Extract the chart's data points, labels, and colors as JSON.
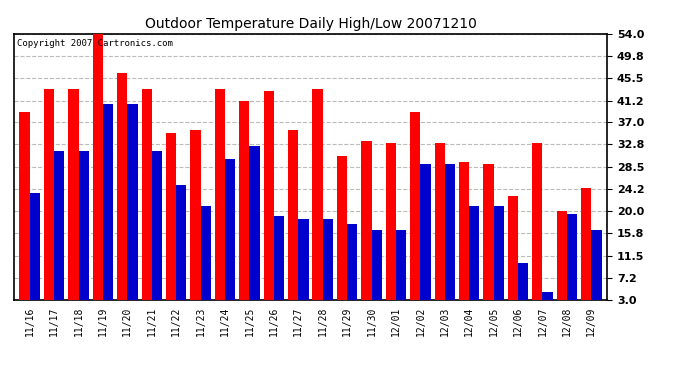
{
  "title": "Outdoor Temperature Daily High/Low 20071210",
  "copyright": "Copyright 2007 Cartronics.com",
  "dates": [
    "11/16",
    "11/17",
    "11/18",
    "11/19",
    "11/20",
    "11/21",
    "11/22",
    "11/23",
    "11/24",
    "11/25",
    "11/26",
    "11/27",
    "11/28",
    "11/29",
    "11/30",
    "12/01",
    "12/02",
    "12/03",
    "12/04",
    "12/05",
    "12/06",
    "12/07",
    "12/08",
    "12/09"
  ],
  "highs": [
    39.0,
    43.5,
    43.5,
    54.0,
    46.5,
    43.5,
    35.0,
    35.5,
    43.5,
    41.2,
    43.0,
    35.5,
    43.5,
    30.5,
    33.5,
    33.0,
    39.0,
    33.0,
    29.5,
    29.0,
    23.0,
    33.0,
    20.0,
    24.5
  ],
  "lows": [
    23.5,
    31.5,
    31.5,
    40.5,
    40.5,
    31.5,
    25.0,
    21.0,
    30.0,
    32.5,
    19.0,
    18.5,
    18.5,
    17.5,
    16.5,
    16.5,
    29.0,
    29.0,
    21.0,
    21.0,
    10.0,
    4.5,
    19.5,
    16.5
  ],
  "high_color": "#ff0000",
  "low_color": "#0000cc",
  "bg_color": "#ffffff",
  "plot_bg_color": "#ffffff",
  "grid_color": "#bbbbbb",
  "yticks": [
    3.0,
    7.2,
    11.5,
    15.8,
    20.0,
    24.2,
    28.5,
    32.8,
    37.0,
    41.2,
    45.5,
    49.8,
    54.0
  ],
  "ymin": 3.0,
  "ymax": 54.0,
  "bar_width": 0.42
}
